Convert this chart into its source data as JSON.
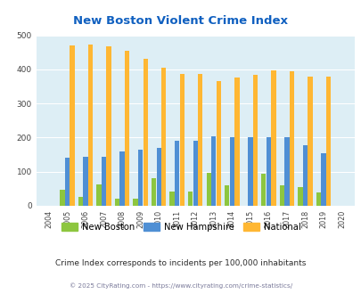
{
  "title": "New Boston Violent Crime Index",
  "years": [
    2004,
    2005,
    2006,
    2007,
    2008,
    2009,
    2010,
    2011,
    2012,
    2013,
    2014,
    2015,
    2016,
    2017,
    2018,
    2019,
    2020
  ],
  "new_boston": [
    0,
    47,
    25,
    62,
    22,
    22,
    80,
    43,
    43,
    97,
    60,
    0,
    95,
    60,
    55,
    40,
    0
  ],
  "new_hampshire": [
    0,
    140,
    143,
    143,
    160,
    165,
    170,
    192,
    192,
    203,
    200,
    202,
    200,
    202,
    178,
    153,
    0
  ],
  "national": [
    0,
    470,
    473,
    468,
    455,
    432,
    405,
    387,
    387,
    367,
    377,
    383,
    398,
    394,
    380,
    380,
    0
  ],
  "nb_color": "#8dc63f",
  "nh_color": "#4f8fd4",
  "nat_color": "#ffb733",
  "bg_color": "#ddeef5",
  "title_color": "#1060c0",
  "ylim": [
    0,
    500
  ],
  "yticks": [
    0,
    100,
    200,
    300,
    400,
    500
  ],
  "subtitle": "Crime Index corresponds to incidents per 100,000 inhabitants",
  "footer": "© 2025 CityRating.com - https://www.cityrating.com/crime-statistics/",
  "subtitle_color": "#2b2b2b",
  "footer_color": "#7a7a9a"
}
